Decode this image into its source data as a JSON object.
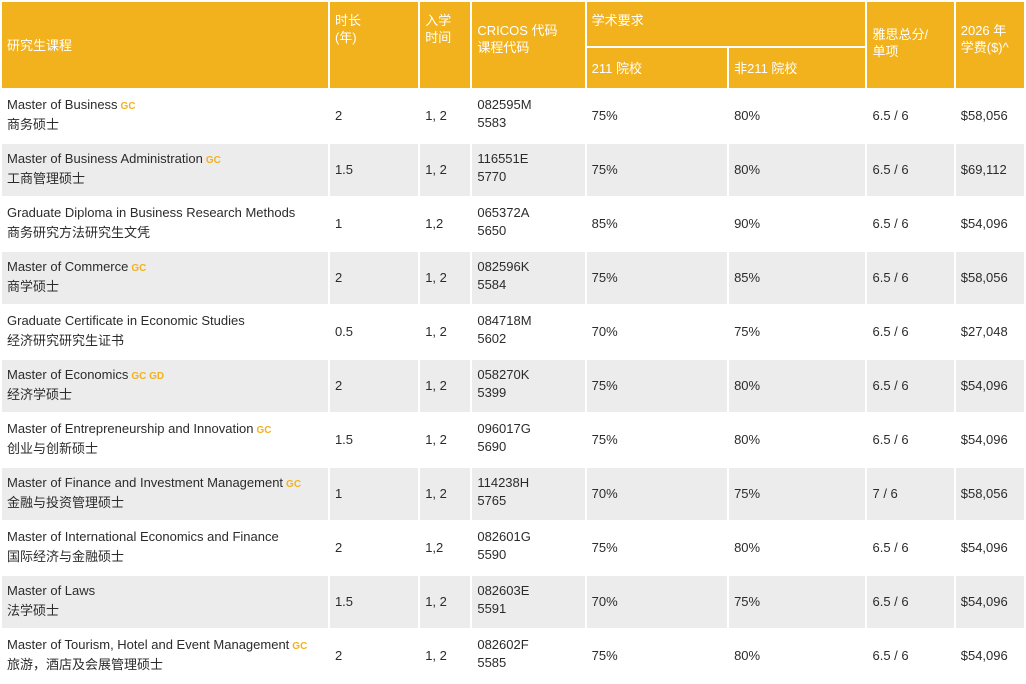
{
  "header": {
    "program": "研究生课程",
    "duration": "时长\n(年)",
    "intake": "入学\n时间",
    "cricos": "CRICOS 代码\n课程代码",
    "academic": "学术要求",
    "req_211": "211 院校",
    "req_non211": "非211 院校",
    "ielts": "雅思总分/\n单项",
    "fee": "2026 年\n学费($)^"
  },
  "rows": [
    {
      "en": "Master of Business",
      "tags": "GC",
      "cn": "商务硕士",
      "duration": "2",
      "intake": "1, 2",
      "cricos": "082595M",
      "code": "5583",
      "r211": "75%",
      "rnon": "80%",
      "ielts": "6.5 / 6",
      "fee": "$58,056"
    },
    {
      "en": "Master of Business Administration",
      "tags": "GC",
      "cn": "工商管理硕士",
      "duration": "1.5",
      "intake": "1, 2",
      "cricos": "116551E",
      "code": "5770",
      "r211": "75%",
      "rnon": "80%",
      "ielts": "6.5 / 6",
      "fee": "$69,112"
    },
    {
      "en": "Graduate Diploma in Business Research Methods",
      "tags": "",
      "cn": "商务研究方法研究生文凭",
      "duration": "1",
      "intake": "1,2",
      "cricos": "065372A",
      "code": "5650",
      "r211": "85%",
      "rnon": "90%",
      "ielts": "6.5 / 6",
      "fee": "$54,096"
    },
    {
      "en": "Master of Commerce",
      "tags": "GC",
      "cn": "商学硕士",
      "duration": "2",
      "intake": "1, 2",
      "cricos": "082596K",
      "code": "5584",
      "r211": "75%",
      "rnon": "85%",
      "ielts": "6.5 / 6",
      "fee": "$58,056"
    },
    {
      "en": "Graduate Certificate in Economic Studies",
      "tags": "",
      "cn": "经济研究研究生证书",
      "duration": "0.5",
      "intake": "1, 2",
      "cricos": "084718M",
      "code": "5602",
      "r211": "70%",
      "rnon": "75%",
      "ielts": "6.5 / 6",
      "fee": "$27,048"
    },
    {
      "en": "Master of Economics",
      "tags": "GC GD",
      "cn": "经济学硕士",
      "duration": "2",
      "intake": "1, 2",
      "cricos": "058270K",
      "code": "5399",
      "r211": "75%",
      "rnon": "80%",
      "ielts": "6.5 / 6",
      "fee": "$54,096"
    },
    {
      "en": "Master of Entrepreneurship and Innovation",
      "tags": "GC",
      "cn": "创业与创新硕士",
      "duration": "1.5",
      "intake": "1, 2",
      "cricos": "096017G",
      "code": "5690",
      "r211": "75%",
      "rnon": "80%",
      "ielts": "6.5 / 6",
      "fee": "$54,096"
    },
    {
      "en": "Master of Finance and Investment Management",
      "tags": "GC",
      "cn": "金融与投资管理硕士",
      "duration": "1",
      "intake": "1, 2",
      "cricos": "114238H",
      "code": "5765",
      "r211": "70%",
      "rnon": "75%",
      "ielts": "7 / 6",
      "fee": "$58,056"
    },
    {
      "en": "Master of International Economics and Finance",
      "tags": "",
      "cn": "国际经济与金融硕士",
      "duration": "2",
      "intake": "1,2",
      "cricos": "082601G",
      "code": "5590",
      "r211": "75%",
      "rnon": "80%",
      "ielts": "6.5 / 6",
      "fee": "$54,096"
    },
    {
      "en": "Master of Laws",
      "tags": "",
      "cn": "法学硕士",
      "duration": "1.5",
      "intake": "1, 2",
      "cricos": "082603E",
      "code": "5591",
      "r211": "70%",
      "rnon": "75%",
      "ielts": "6.5 / 6",
      "fee": "$54,096"
    },
    {
      "en": "Master of Tourism, Hotel and Event Management",
      "tags": "GC",
      "cn": "旅游，酒店及会展管理硕士",
      "duration": "2",
      "intake": "1, 2",
      "cricos": "082602F",
      "code": "5585",
      "r211": "75%",
      "rnon": "80%",
      "ielts": "6.5 / 6",
      "fee": "$54,096"
    }
  ]
}
